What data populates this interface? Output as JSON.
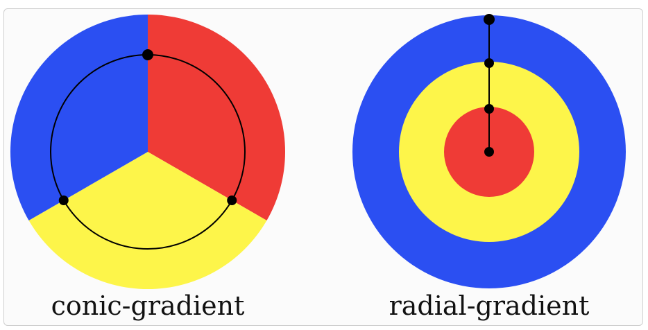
{
  "colors": {
    "blue": "#2b4ff2",
    "red": "#ef3b36",
    "yellow": "#fdf54a",
    "marker": "#000000"
  },
  "conic": {
    "label": "conic-gradient",
    "stops": [
      {
        "color": "red",
        "from_deg": 0,
        "to_deg": 120
      },
      {
        "color": "yellow",
        "from_deg": 120,
        "to_deg": 240
      },
      {
        "color": "blue",
        "from_deg": 240,
        "to_deg": 360
      }
    ]
  },
  "radial": {
    "label": "radial-gradient",
    "stops": [
      {
        "color": "red",
        "from": 0,
        "to": 0.333
      },
      {
        "color": "yellow",
        "from": 0.333,
        "to": 0.667
      },
      {
        "color": "blue",
        "from": 0.667,
        "to": 1.0
      }
    ]
  }
}
